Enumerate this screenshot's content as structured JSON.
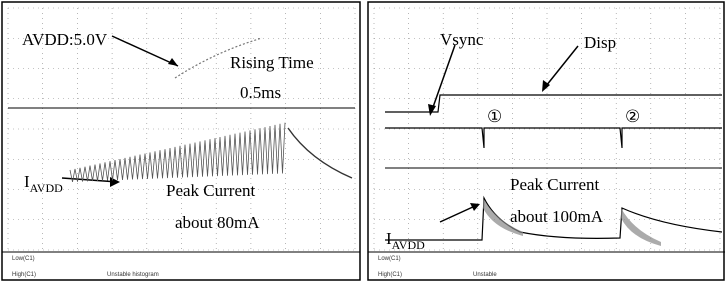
{
  "left": {
    "voltage_label": "AVDD:5.0V",
    "rise_label": "Rising Time",
    "rise_value": "0.5ms",
    "current_label": {
      "main": "I",
      "sub": "AVDD"
    },
    "peak_label": "Peak Current",
    "peak_value": "about 80mA",
    "measurements": [
      "Low(C1)",
      "High(C1)",
      "Unstable histogram"
    ]
  },
  "right": {
    "vsync_label": "Vsync",
    "disp_label": "Disp",
    "marker_1": "①",
    "marker_2": "②",
    "peak_label": "Peak Current",
    "current_label": {
      "main": "I",
      "sub": "AVDD"
    },
    "peak_value": "about 100mA",
    "measurements": [
      "Low(C1)",
      "High(C1)",
      "Unstable"
    ]
  }
}
